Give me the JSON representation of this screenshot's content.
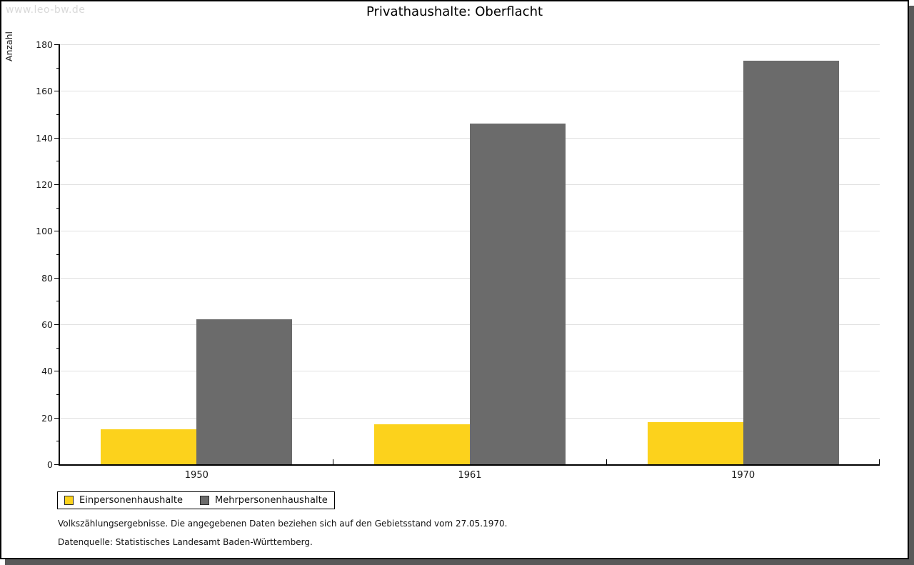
{
  "watermark": "www.leo-bw.de",
  "title": "Privathaushalte: Oberflacht",
  "chart_data": {
    "type": "bar",
    "title": "Privathaushalte: Oberflacht",
    "ylabel": "Anzahl",
    "xlabel": "",
    "categories": [
      "1950",
      "1961",
      "1970"
    ],
    "series": [
      {
        "name": "Einpersonenhaushalte",
        "color": "#fcd21c",
        "values": [
          15,
          17,
          18
        ]
      },
      {
        "name": "Mehrpersonenhaushalte",
        "color": "#6b6b6b",
        "values": [
          62,
          146,
          173
        ]
      }
    ],
    "ylim": [
      0,
      180
    ],
    "y_major_step": 20,
    "y_minor_step": 10,
    "grid": true,
    "legend_position": "bottom-left"
  },
  "footer": {
    "line1": "Volkszählungsergebnisse. Die angegebenen Daten beziehen sich auf den Gebietsstand vom 27.05.1970.",
    "line2": "Datenquelle: Statistisches Landesamt Baden-Württemberg."
  },
  "colors": {
    "bar_yellow": "#fcd21c",
    "bar_gray": "#6b6b6b",
    "gridline": "#e0e0e0",
    "axis": "#000000",
    "watermark": "#d9d9d9",
    "shadow": "#595959"
  }
}
